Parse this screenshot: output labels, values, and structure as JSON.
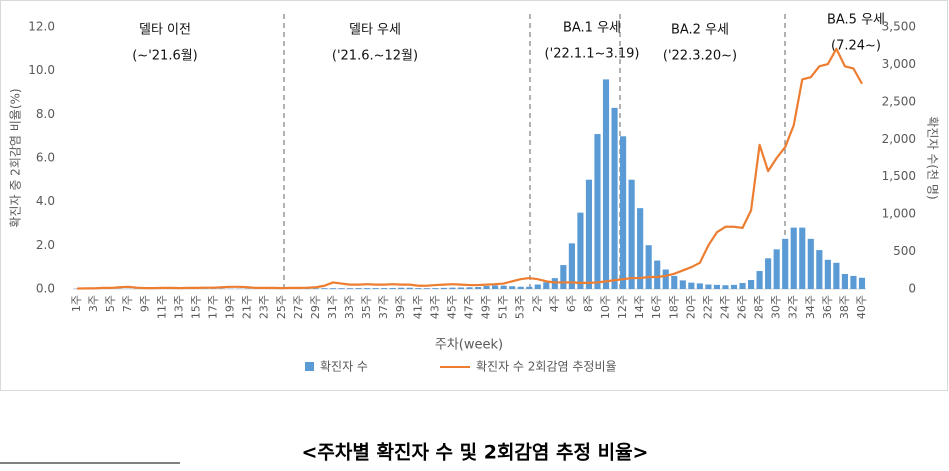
{
  "chart_data": {
    "type": "bar-line",
    "caption": "<주차별 확진자 수 및 2회감염 추정 비율>",
    "xlabel": "주차(week)",
    "ylabel": "확진자 중 2회감염 비율(%)",
    "y2label": "확진자 수(천 명)",
    "annotations": [
      "델타 이전",
      "(~'21.6월)",
      "델타 우세",
      "('21.6.~12월)",
      "BA.1 우세",
      "('22.1.1~3.19)",
      "BA.2 우세",
      "('22.3.20~)",
      "BA.5 우세",
      "(7.24~)"
    ],
    "categories": [
      "1주",
      null,
      "3주",
      null,
      "5주",
      null,
      "7주",
      null,
      "9주",
      null,
      "11주",
      null,
      "13주",
      null,
      "15주",
      null,
      "17주",
      null,
      "19주",
      null,
      "21주",
      null,
      "23주",
      null,
      "25주",
      null,
      "27주",
      null,
      "29주",
      null,
      "31주",
      null,
      "33주",
      null,
      "35주",
      null,
      "37주",
      null,
      "39주",
      null,
      "41주",
      null,
      "43주",
      null,
      "45주",
      null,
      "47주",
      null,
      "49주",
      null,
      "51주",
      null,
      "53주",
      null,
      "2주",
      null,
      "4주",
      null,
      "6주",
      null,
      "8주",
      null,
      "10주",
      null,
      "12주",
      null,
      "14주",
      null,
      "16주",
      null,
      "18주",
      null,
      "20주",
      null,
      "22주",
      null,
      "24주",
      null,
      "26주",
      null,
      "28주",
      null,
      "30주",
      null,
      "32주",
      null,
      "34주",
      null,
      "36주",
      null,
      "38주",
      null,
      "40주"
    ],
    "series": [
      {
        "name": "확진자 수",
        "type": "bar",
        "axis": "y2",
        "color": "#5b9bd5",
        "values": [
          5,
          4,
          3,
          3,
          3,
          3,
          3,
          3,
          3,
          3,
          3,
          3,
          3,
          3,
          4,
          4,
          4,
          4,
          4,
          4,
          4,
          4,
          4,
          4,
          4,
          4,
          5,
          8,
          10,
          11,
          11,
          11,
          11,
          12,
          12,
          12,
          12,
          13,
          17,
          17,
          12,
          11,
          12,
          15,
          18,
          20,
          23,
          26,
          40,
          48,
          45,
          37,
          30,
          30,
          60,
          90,
          145,
          320,
          610,
          1020,
          1460,
          2070,
          2800,
          2420,
          2040,
          1460,
          1080,
          585,
          380,
          260,
          175,
          115,
          85,
          75,
          60,
          55,
          50,
          55,
          80,
          120,
          240,
          410,
          530,
          670,
          820,
          820,
          670,
          520,
          390,
          350,
          200,
          175,
          150
        ]
      },
      {
        "name": "확진자 수 2회감염 추정비율",
        "type": "line",
        "color": "#ed7d31",
        "values": [
          0.02,
          0.03,
          0.03,
          0.05,
          0.05,
          0.08,
          0.1,
          0.06,
          0.04,
          0.04,
          0.05,
          0.05,
          0.04,
          0.05,
          0.05,
          0.06,
          0.06,
          0.08,
          0.1,
          0.1,
          0.08,
          0.05,
          0.05,
          0.05,
          0.04,
          0.05,
          0.05,
          0.06,
          0.08,
          0.15,
          0.3,
          0.25,
          0.2,
          0.2,
          0.22,
          0.2,
          0.2,
          0.22,
          0.2,
          0.2,
          0.15,
          0.15,
          0.18,
          0.2,
          0.22,
          0.2,
          0.18,
          0.18,
          0.2,
          0.22,
          0.25,
          0.35,
          0.45,
          0.5,
          0.45,
          0.35,
          0.3,
          0.3,
          0.3,
          0.28,
          0.28,
          0.3,
          0.35,
          0.4,
          0.45,
          0.5,
          0.5,
          0.55,
          0.55,
          0.6,
          0.7,
          0.85,
          1.0,
          1.2,
          2.0,
          2.6,
          2.85,
          2.85,
          2.8,
          3.6,
          6.6,
          5.4,
          6.0,
          6.5,
          7.5,
          9.6,
          9.7,
          10.2,
          10.3,
          11.0,
          10.2,
          10.1,
          9.4
        ]
      }
    ],
    "ylim": [
      0,
      12
    ],
    "yticks": [
      {
        "value": 0,
        "label": "0.0"
      },
      {
        "value": 2,
        "label": "2.0"
      },
      {
        "value": 4,
        "label": "4.0"
      },
      {
        "value": 6,
        "label": "6.0"
      },
      {
        "value": 8,
        "label": "8.0"
      },
      {
        "value": 10,
        "label": "10.0"
      },
      {
        "value": 12,
        "label": "12.0"
      }
    ],
    "y2lim": [
      0,
      3500
    ],
    "y2ticks": [
      0,
      500,
      {
        "value": 1000,
        "label": "1,000"
      },
      {
        "value": 1500,
        "label": "1,500"
      },
      {
        "value": 2000,
        "label": "2,000"
      },
      {
        "value": 2500,
        "label": "2,500"
      },
      {
        "value": 3000,
        "label": "3,000"
      },
      {
        "value": 3500,
        "label": "3,500"
      }
    ]
  }
}
